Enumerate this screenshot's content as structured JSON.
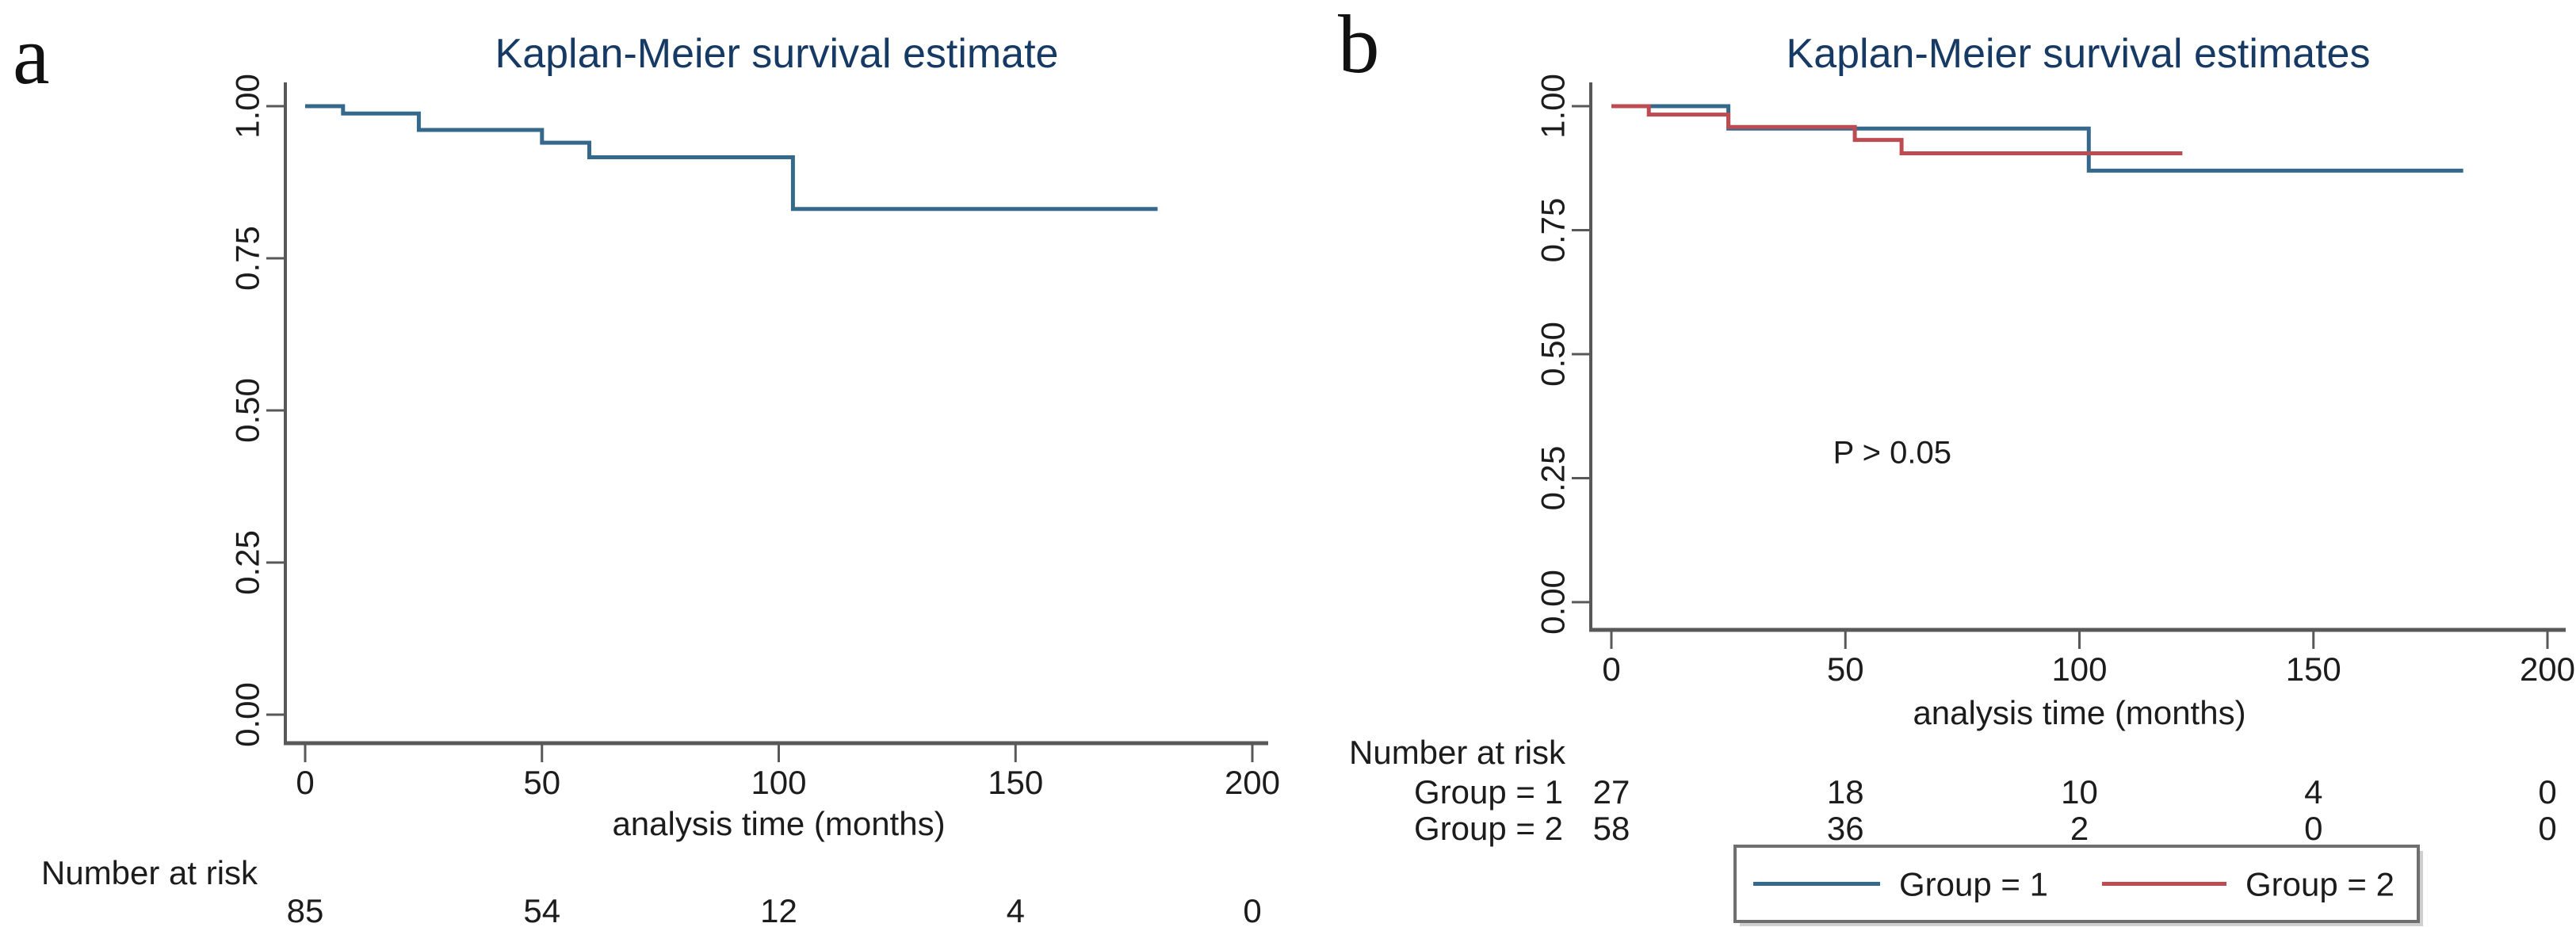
{
  "page": {
    "background": "#ffffff"
  },
  "colors": {
    "title": "#173a64",
    "axis": "#585858",
    "text": "#1c1c1c",
    "legend_border": "#6f6f6f",
    "legend_shadow": "#a8a8a8",
    "group1": "#35698c",
    "group2": "#bc4b52"
  },
  "chart_data": [
    {
      "type": "line",
      "subtype": "kaplan-meier-step",
      "panel_label": "a",
      "title": "Kaplan-Meier survival estimate",
      "xlabel": "analysis time (months)",
      "ylabel": "",
      "xlim": [
        0,
        207
      ],
      "ylim": [
        0.0,
        1.04
      ],
      "grid": false,
      "x_ticks": [
        0,
        50,
        100,
        150,
        200
      ],
      "y_ticks": [
        1.0,
        0.75,
        0.5,
        0.25,
        0.0
      ],
      "y_tick_labels": [
        "1.00",
        "0.75",
        "0.50",
        "0.25",
        "0.00"
      ],
      "series": [
        {
          "name": "survival-estimate",
          "color": "group1",
          "steps": [
            [
              0,
              1.0
            ],
            [
              8,
              1.0
            ],
            [
              8,
              0.988
            ],
            [
              24,
              0.988
            ],
            [
              24,
              0.961
            ],
            [
              50,
              0.961
            ],
            [
              50,
              0.94
            ],
            [
              60,
              0.94
            ],
            [
              60,
              0.916
            ],
            [
              103,
              0.916
            ],
            [
              103,
              0.831
            ],
            [
              180,
              0.831
            ]
          ]
        }
      ],
      "risk_table": {
        "header": "Number at risk",
        "rows": [
          {
            "label": "",
            "values": [
              "85",
              "54",
              "12",
              "4",
              "0"
            ]
          }
        ]
      },
      "annotation": null,
      "legend": null
    },
    {
      "type": "line",
      "subtype": "kaplan-meier-step",
      "panel_label": "b",
      "title": "Kaplan-Meier survival estimates",
      "xlabel": "analysis time (months)",
      "ylabel": "",
      "xlim": [
        0,
        207
      ],
      "ylim": [
        0.0,
        1.04
      ],
      "grid": false,
      "x_ticks": [
        0,
        50,
        100,
        150,
        200
      ],
      "y_ticks": [
        1.0,
        0.75,
        0.5,
        0.25,
        0.0
      ],
      "y_tick_labels": [
        "1.00",
        "0.75",
        "0.50",
        "0.25",
        "0.00"
      ],
      "series": [
        {
          "name": "group-1",
          "color": "group1",
          "steps": [
            [
              0,
              1.0
            ],
            [
              25,
              1.0
            ],
            [
              25,
              0.955
            ],
            [
              102,
              0.955
            ],
            [
              102,
              0.87
            ],
            [
              182,
              0.87
            ]
          ]
        },
        {
          "name": "group-2",
          "color": "group2",
          "steps": [
            [
              0,
              1.0
            ],
            [
              8,
              1.0
            ],
            [
              8,
              0.983
            ],
            [
              25,
              0.983
            ],
            [
              25,
              0.958
            ],
            [
              52,
              0.958
            ],
            [
              52,
              0.932
            ],
            [
              62,
              0.932
            ],
            [
              62,
              0.905
            ],
            [
              122,
              0.905
            ]
          ]
        }
      ],
      "risk_table": {
        "header": "Number at risk",
        "rows": [
          {
            "label": "Group = 1",
            "values": [
              "27",
              "18",
              "10",
              "4",
              "0"
            ]
          },
          {
            "label": "Group = 2",
            "values": [
              "58",
              "36",
              "2",
              "0",
              "0"
            ]
          }
        ]
      },
      "annotation": {
        "text": "P > 0.05",
        "x": 60,
        "y": 0.28
      },
      "legend": {
        "position": "bottom",
        "items": [
          {
            "label": "Group = 1",
            "color": "group1"
          },
          {
            "label": "Group = 2",
            "color": "group2"
          }
        ]
      }
    }
  ]
}
